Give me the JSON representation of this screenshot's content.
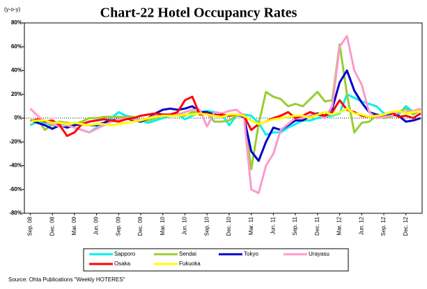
{
  "chart_data": {
    "type": "line",
    "title": "Chart-22 Hotel Occupancy Rates",
    "y_label": "(y-o-y)",
    "source": "Source: Ohta Publications \"Weekly HOTERES\"",
    "categories": [
      "Sep. 08",
      null,
      null,
      "Dec. 08",
      null,
      null,
      "Mar. 09",
      null,
      null,
      "Jun. 09",
      null,
      null,
      "Sep. 09",
      null,
      null,
      "Dec. 09",
      null,
      null,
      "Mar. 10",
      null,
      null,
      "Jun. 10",
      null,
      null,
      "Sep. 10",
      null,
      null,
      "Dec. 10",
      null,
      null,
      "Mar. 11",
      null,
      null,
      "Jun. 11",
      null,
      null,
      "Sep. 11",
      null,
      null,
      "Dec. 11",
      null,
      null,
      "Mar. 12",
      null,
      null,
      "Jun. 12",
      null,
      null,
      "Sep. 12",
      null,
      null,
      "Dec. 12",
      null,
      null
    ],
    "ylim": [
      -80,
      80
    ],
    "yticks": [
      {
        "value": -80,
        "label": "-80%"
      },
      {
        "value": -60,
        "label": "-60%"
      },
      {
        "value": -40,
        "label": "-40%"
      },
      {
        "value": -20,
        "label": "-20%"
      },
      {
        "value": 0,
        "label": "0%"
      },
      {
        "value": 20,
        "label": "20%"
      },
      {
        "value": 40,
        "label": "40%"
      },
      {
        "value": 60,
        "label": "60%"
      },
      {
        "value": 80,
        "label": "80%"
      }
    ],
    "grid": false,
    "series": [
      {
        "name": "Sapporo",
        "color": "#00f0f0",
        "values": [
          -6,
          -3,
          -4,
          -6,
          -7,
          -5,
          -8,
          -10,
          -12,
          -8,
          -4,
          0,
          5,
          2,
          1,
          -2,
          -4,
          -2,
          0,
          2,
          3,
          -1,
          2,
          5,
          6,
          5,
          4,
          -6,
          2,
          3,
          2,
          -4,
          -14,
          -12,
          -12,
          -8,
          -5,
          -2,
          -2,
          0,
          1,
          2,
          4,
          20,
          17,
          14,
          12,
          10,
          4,
          2,
          3,
          10,
          5,
          8
        ]
      },
      {
        "name": "Sendai",
        "color": "#99cc33",
        "values": [
          -3,
          -1,
          -10,
          -5,
          -3,
          -4,
          -5,
          -3,
          0,
          0,
          1,
          1,
          1,
          1,
          1,
          -3,
          -2,
          0,
          2,
          2,
          2,
          2,
          5,
          5,
          4,
          -3,
          -3,
          -2,
          2,
          3,
          -43,
          -5,
          22,
          18,
          16,
          10,
          12,
          10,
          16,
          22,
          14,
          15,
          62,
          20,
          -12,
          -4,
          -3,
          2,
          0,
          1,
          5,
          8,
          3,
          7
        ]
      },
      {
        "name": "Tokyo",
        "color": "#0000cc",
        "values": [
          -2,
          -4,
          -6,
          -9,
          -6,
          -8,
          -6,
          -5,
          -6,
          -6,
          -4,
          -2,
          -1,
          0,
          -2,
          -3,
          0,
          4,
          7,
          8,
          7,
          8,
          10,
          5,
          5,
          3,
          2,
          2,
          3,
          1,
          -28,
          -36,
          -20,
          -8,
          -10,
          -6,
          -2,
          -2,
          2,
          4,
          2,
          8,
          30,
          40,
          23,
          13,
          5,
          3,
          2,
          3,
          2,
          -3,
          -2,
          0
        ]
      },
      {
        "name": "Urayasu",
        "color": "#ff99cc",
        "values": [
          8,
          2,
          -3,
          -5,
          -7,
          -6,
          -8,
          -10,
          -12,
          -9,
          -6,
          -3,
          -1,
          0,
          -1,
          -2,
          0,
          2,
          2,
          2,
          3,
          5,
          7,
          7,
          -7,
          5,
          4,
          6,
          7,
          2,
          -60,
          -63,
          -40,
          -30,
          -10,
          -5,
          0,
          0,
          2,
          3,
          0,
          10,
          60,
          69,
          40,
          28,
          5,
          0,
          1,
          2,
          5,
          5,
          6,
          8
        ]
      },
      {
        "name": "Osaka",
        "color": "#ff0000",
        "values": [
          -3,
          -1,
          -3,
          -2,
          -6,
          -15,
          -12,
          -5,
          -3,
          -2,
          -1,
          -2,
          -3,
          -1,
          0,
          2,
          3,
          4,
          3,
          3,
          5,
          15,
          18,
          3,
          4,
          2,
          3,
          2,
          3,
          2,
          -10,
          -5,
          -3,
          0,
          2,
          5,
          0,
          2,
          5,
          3,
          2,
          5,
          15,
          7,
          5,
          2,
          1,
          2,
          3,
          5,
          1,
          2,
          0,
          4
        ]
      },
      {
        "name": "Fukuoka",
        "color": "#ffff00",
        "values": [
          -3,
          -2,
          -2,
          -4,
          -4,
          -5,
          -4,
          -5,
          -6,
          -5,
          -5,
          -6,
          -5,
          -4,
          -3,
          -2,
          0,
          1,
          2,
          2,
          2,
          3,
          3,
          4,
          3,
          2,
          1,
          3,
          3,
          2,
          -2,
          -5,
          -3,
          -1,
          0,
          1,
          2,
          2,
          0,
          3,
          5,
          3,
          5,
          8,
          4,
          3,
          1,
          2,
          3,
          5,
          6,
          4,
          5,
          6
        ]
      }
    ]
  }
}
